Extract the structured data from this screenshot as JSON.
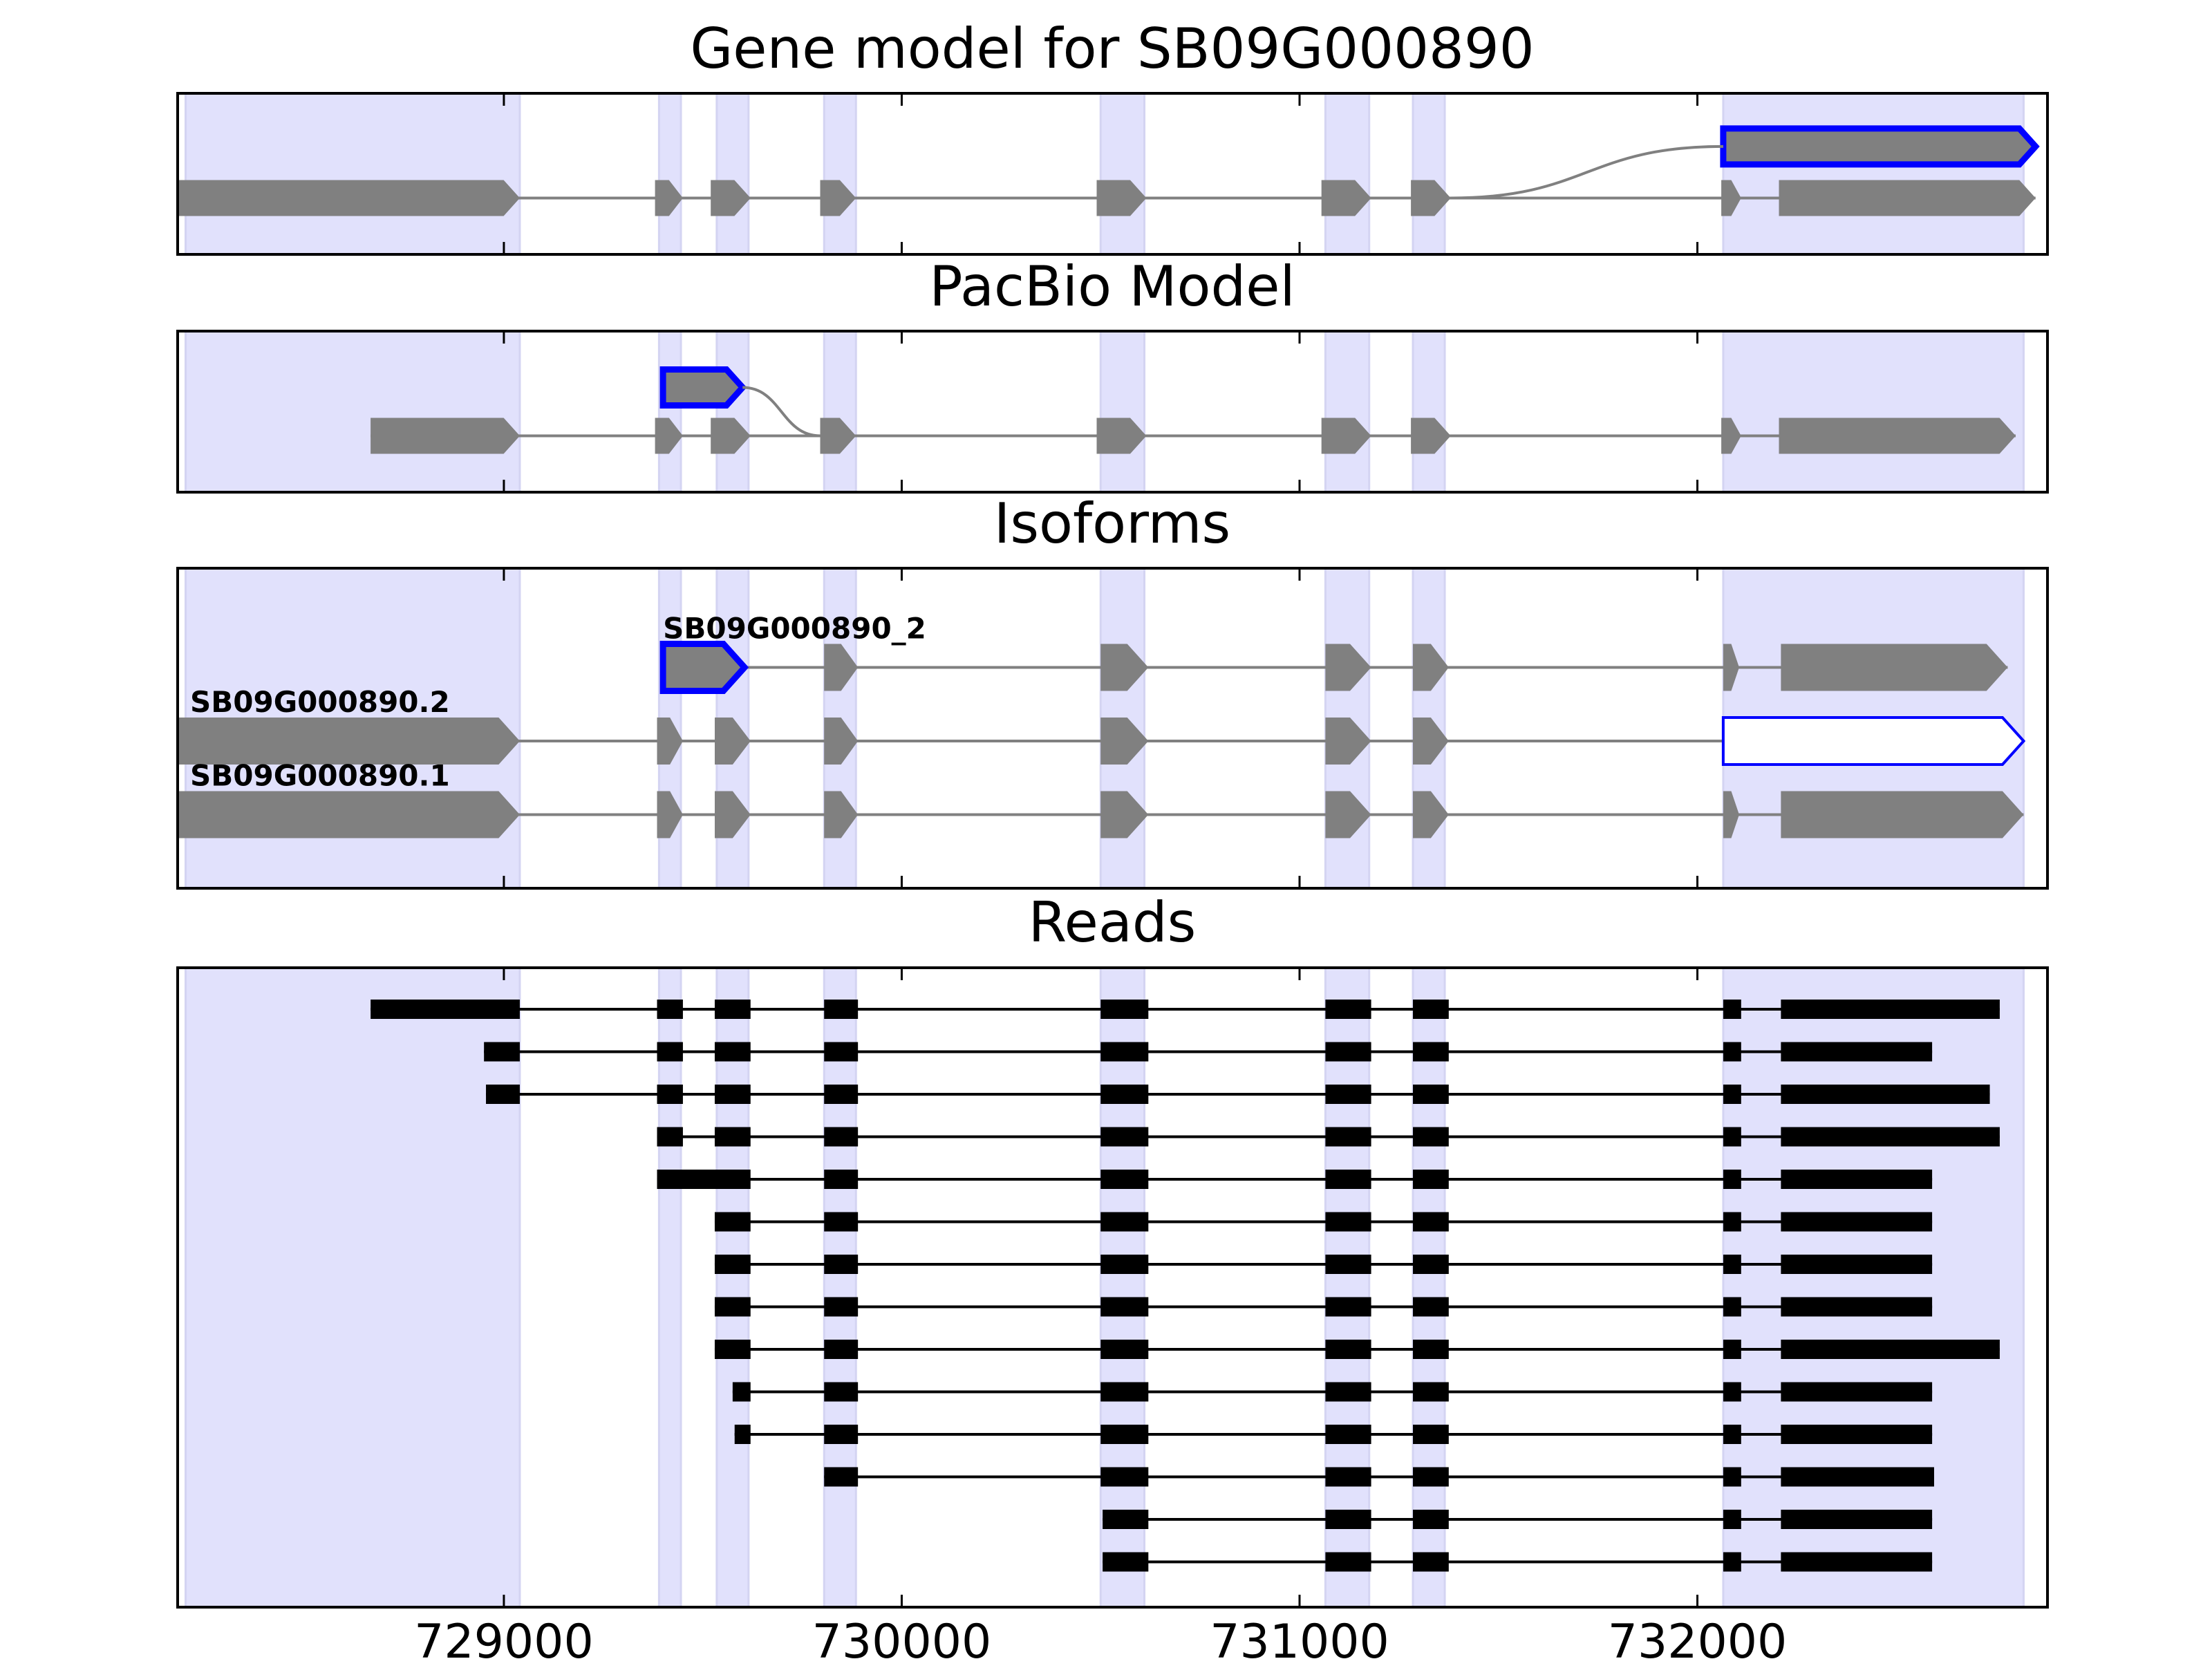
{
  "chart_data": {
    "type": "gene-structure",
    "x_axis": {
      "xlim": [
        728180,
        732880
      ],
      "ticks": [
        729000,
        730000,
        731000,
        732000
      ],
      "tick_labels": [
        "729000",
        "730000",
        "731000",
        "732000"
      ]
    },
    "exon_regions": [
      [
        728200,
        729040
      ],
      [
        729390,
        729445
      ],
      [
        729535,
        729615
      ],
      [
        729805,
        729885
      ],
      [
        730500,
        730610
      ],
      [
        731065,
        731175
      ],
      [
        731285,
        731365
      ],
      [
        732065,
        732820
      ]
    ],
    "colors": {
      "exon_fill": "#808080",
      "intron": "#808080",
      "highlight_edge": "#0000ff",
      "region_shade": "#e1e1fc",
      "read": "#000000",
      "axes": "#000000"
    },
    "panels": [
      {
        "title": "Gene model for SB09G000890",
        "tracks": [
          {
            "label": "",
            "y": 0.65,
            "exons": [
              [
                728180,
                729040
              ],
              [
                729380,
                729450
              ],
              [
                729520,
                729620
              ],
              [
                729795,
                729885
              ],
              [
                730490,
                730615
              ],
              [
                731055,
                731180
              ],
              [
                731280,
                731380
              ],
              [
                732060,
                732110
              ],
              [
                732205,
                732850
              ]
            ]
          },
          {
            "label": "",
            "y": 0.33,
            "highlight": true,
            "exons": [
              [
                732065,
                732850
              ]
            ]
          }
        ],
        "connectors": [
          {
            "from": [
              731380,
              0.65
            ],
            "to": [
              732065,
              0.33
            ]
          }
        ]
      },
      {
        "title": "PacBio Model",
        "tracks": [
          {
            "label": "",
            "y": 0.65,
            "exons": [
              [
                728665,
                729040
              ],
              [
                729380,
                729450
              ],
              [
                729520,
                729620
              ],
              [
                729795,
                729885
              ],
              [
                730490,
                730615
              ],
              [
                731055,
                731180
              ],
              [
                731280,
                731380
              ],
              [
                732060,
                732110
              ],
              [
                732205,
                732800
              ]
            ]
          },
          {
            "label": "",
            "y": 0.35,
            "highlight": true,
            "exons": [
              [
                729400,
                729600
              ]
            ]
          }
        ],
        "connectors": [
          {
            "from": [
              729600,
              0.35
            ],
            "to": [
              729795,
              0.65
            ]
          }
        ]
      },
      {
        "title": "Isoforms",
        "tracks": [
          {
            "label": "SB09G000890_2",
            "y": 0.31,
            "highlight": true,
            "highlight_exon": 0,
            "exons": [
              [
                729400,
                729605
              ],
              [
                729805,
                729890
              ],
              [
                730500,
                730620
              ],
              [
                731065,
                731180
              ],
              [
                731285,
                731375
              ],
              [
                732065,
                732105
              ],
              [
                732210,
                732780
              ]
            ]
          },
          {
            "label": "SB09G000890.2",
            "y": 0.54,
            "highlight": true,
            "highlight_exon": 8,
            "thin_edge": true,
            "exons": [
              [
                728180,
                729040
              ],
              [
                729385,
                729450
              ],
              [
                729530,
                729620
              ],
              [
                729805,
                729890
              ],
              [
                730500,
                730620
              ],
              [
                731065,
                731180
              ],
              [
                731285,
                731375
              ],
              [
                732065,
                732105
              ],
              [
                732065,
                732820
              ]
            ]
          },
          {
            "label": "SB09G000890.1",
            "y": 0.77,
            "exons": [
              [
                728180,
                729040
              ],
              [
                729385,
                729450
              ],
              [
                729530,
                729620
              ],
              [
                729805,
                729890
              ],
              [
                730500,
                730620
              ],
              [
                731065,
                731180
              ],
              [
                731285,
                731375
              ],
              [
                732065,
                732105
              ],
              [
                732210,
                732820
              ]
            ]
          }
        ],
        "connectors": []
      },
      {
        "title": "Reads",
        "reads": [
          [
            [
              728665,
              729040
            ],
            [
              729385,
              729450
            ],
            [
              729530,
              729620
            ],
            [
              729805,
              729890
            ],
            [
              730500,
              730620
            ],
            [
              731065,
              731180
            ],
            [
              731285,
              731375
            ],
            [
              732065,
              732110
            ],
            [
              732210,
              732760
            ]
          ],
          [
            [
              728950,
              729040
            ],
            [
              729385,
              729450
            ],
            [
              729530,
              729620
            ],
            [
              729805,
              729890
            ],
            [
              730500,
              730620
            ],
            [
              731065,
              731180
            ],
            [
              731285,
              731375
            ],
            [
              732065,
              732110
            ],
            [
              732210,
              732590
            ]
          ],
          [
            [
              728955,
              729040
            ],
            [
              729385,
              729450
            ],
            [
              729530,
              729620
            ],
            [
              729805,
              729890
            ],
            [
              730500,
              730620
            ],
            [
              731065,
              731180
            ],
            [
              731285,
              731375
            ],
            [
              732065,
              732110
            ],
            [
              732210,
              732735
            ]
          ],
          [
            [
              729385,
              729450
            ],
            [
              729530,
              729620
            ],
            [
              729805,
              729890
            ],
            [
              730500,
              730620
            ],
            [
              731065,
              731180
            ],
            [
              731285,
              731375
            ],
            [
              732065,
              732110
            ],
            [
              732210,
              732760
            ]
          ],
          [
            [
              729385,
              729620
            ],
            [
              729805,
              729890
            ],
            [
              730500,
              730620
            ],
            [
              731065,
              731180
            ],
            [
              731285,
              731375
            ],
            [
              732065,
              732110
            ],
            [
              732210,
              732590
            ]
          ],
          [
            [
              729530,
              729620
            ],
            [
              729805,
              729890
            ],
            [
              730500,
              730620
            ],
            [
              731065,
              731180
            ],
            [
              731285,
              731375
            ],
            [
              732065,
              732110
            ],
            [
              732210,
              732590
            ]
          ],
          [
            [
              729530,
              729620
            ],
            [
              729805,
              729890
            ],
            [
              730500,
              730620
            ],
            [
              731065,
              731180
            ],
            [
              731285,
              731375
            ],
            [
              732065,
              732110
            ],
            [
              732210,
              732590
            ]
          ],
          [
            [
              729530,
              729620
            ],
            [
              729805,
              729890
            ],
            [
              730500,
              730620
            ],
            [
              731065,
              731180
            ],
            [
              731285,
              731375
            ],
            [
              732065,
              732110
            ],
            [
              732210,
              732590
            ]
          ],
          [
            [
              729530,
              729620
            ],
            [
              729805,
              729890
            ],
            [
              730500,
              730620
            ],
            [
              731065,
              731180
            ],
            [
              731285,
              731375
            ],
            [
              732065,
              732110
            ],
            [
              732210,
              732760
            ]
          ],
          [
            [
              729575,
              729620
            ],
            [
              729805,
              729890
            ],
            [
              730500,
              730620
            ],
            [
              731065,
              731180
            ],
            [
              731285,
              731375
            ],
            [
              732065,
              732110
            ],
            [
              732210,
              732590
            ]
          ],
          [
            [
              729580,
              729620
            ],
            [
              729805,
              729890
            ],
            [
              730500,
              730620
            ],
            [
              731065,
              731180
            ],
            [
              731285,
              731375
            ],
            [
              732065,
              732110
            ],
            [
              732210,
              732590
            ]
          ],
          [
            [
              729805,
              729890
            ],
            [
              730500,
              730620
            ],
            [
              731065,
              731180
            ],
            [
              731285,
              731375
            ],
            [
              732065,
              732110
            ],
            [
              732210,
              732595
            ]
          ],
          [
            [
              730505,
              730620
            ],
            [
              731065,
              731180
            ],
            [
              731285,
              731375
            ],
            [
              732065,
              732110
            ],
            [
              732210,
              732590
            ]
          ],
          [
            [
              730505,
              730620
            ],
            [
              731065,
              731180
            ],
            [
              731285,
              731375
            ],
            [
              732065,
              732110
            ],
            [
              732210,
              732590
            ]
          ]
        ]
      }
    ]
  }
}
